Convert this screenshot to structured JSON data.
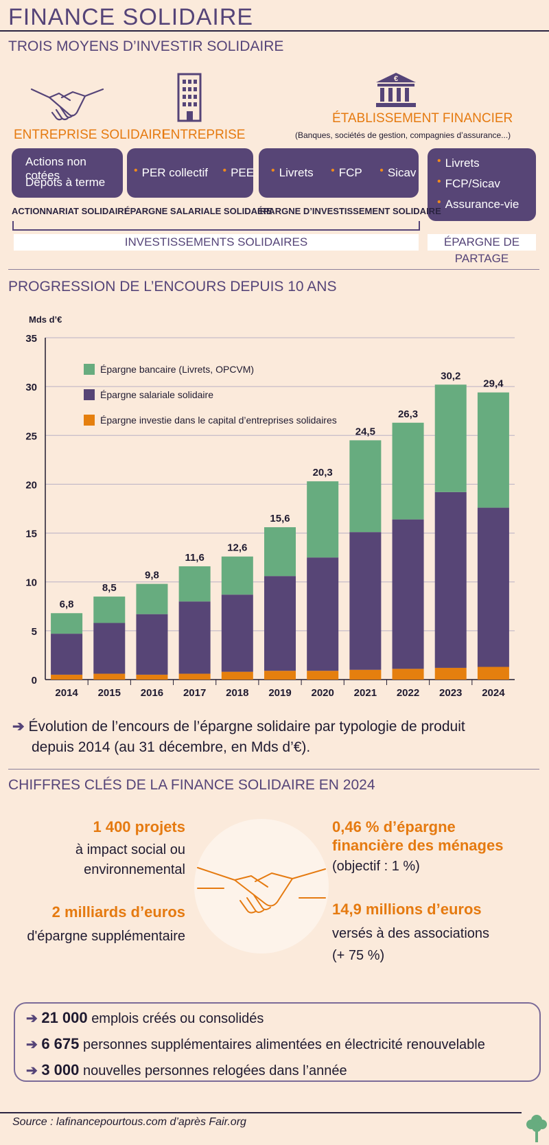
{
  "header": {
    "title": "FINANCE SOLIDAIRE",
    "section1_title": "TROIS MOYENS D’INVESTIR SOLIDAIRE",
    "section2_title": "PROGRESSION DE L’ENCOURS DEPUIS 10 ANS",
    "section3_title": "CHIFFRES CLÉS DE LA FINANCE SOLIDAIRE EN 2024"
  },
  "means": {
    "label_entreprise_solidaire": "ENTREPRISE SOLIDAIRE",
    "label_entreprise": "ENTREPRISE",
    "label_etablissement": "ÉTABLISSEMENT FINANCIER",
    "label_etablissement_sub": "(Banques, sociétés de gestion, compagnies d’assurance...)",
    "box1": [
      "Actions non cotées",
      "Dépôts à terme"
    ],
    "box2": [
      "PER collectif",
      "PEE"
    ],
    "box3": [
      "Livrets",
      "FCP",
      "Sicav"
    ],
    "box4": [
      "Livrets",
      "FCP/Sicav",
      "Assurance-vie"
    ],
    "cat1": "ACTIONNARIAT SOLIDAIRE",
    "cat2": "ÉPARGNE SALARIALE SOLIDAIRE",
    "cat3": "ÉPARGNE D’INVESTISSEMENT SOLIDAIRE",
    "group1": "INVESTISSEMENTS SOLIDAIRES",
    "group2": "ÉPARGNE DE PARTAGE",
    "euro_symbol": "€"
  },
  "chart_data": {
    "type": "bar",
    "stacked": true,
    "ylabel": "Mds d’€",
    "ylim": [
      0,
      35
    ],
    "yticks": [
      0,
      5,
      10,
      15,
      20,
      25,
      30,
      35
    ],
    "categories": [
      "2014",
      "2015",
      "2016",
      "2017",
      "2018",
      "2019",
      "2020",
      "2021",
      "2022",
      "2023",
      "2024"
    ],
    "series": [
      {
        "name": "Épargne investie dans le capital d’entreprises solidaires",
        "color": "#e57f0e",
        "values": [
          0.5,
          0.6,
          0.5,
          0.6,
          0.8,
          0.9,
          0.9,
          1.0,
          1.1,
          1.2,
          1.3
        ]
      },
      {
        "name": "Épargne salariale solidaire",
        "color": "#574576",
        "values": [
          4.2,
          5.2,
          6.2,
          7.4,
          7.9,
          9.7,
          11.6,
          14.1,
          15.3,
          18.0,
          16.3
        ]
      },
      {
        "name": "Épargne bancaire (Livrets, OPCVM)",
        "color": "#67ac7f",
        "values": [
          2.1,
          2.7,
          3.1,
          3.6,
          3.9,
          5.0,
          7.8,
          9.4,
          9.9,
          11.0,
          11.8
        ]
      }
    ],
    "totals": [
      "6,8",
      "8,5",
      "9,8",
      "11,6",
      "12,6",
      "15,6",
      "20,3",
      "24,5",
      "26,3",
      "30,2",
      "29,4"
    ],
    "legend_order": [
      "Épargne bancaire (Livrets, OPCVM)",
      "Épargne salariale solidaire",
      "Épargne investie dans le capital d’entreprises solidaires"
    ]
  },
  "caption": {
    "arrow": "➔",
    "line1": "Évolution de l’encours de l’épargne solidaire par typologie de produit",
    "line2": "depuis 2014 (au 31 décembre, en Mds d’€)."
  },
  "key_figures": {
    "projects_big": "1 400 projets",
    "projects_l1": "à impact social ou",
    "projects_l2": "environnemental",
    "billion_big": "2 milliards d’euros",
    "billion_l1": "d'épargne supplémentaire",
    "share_big1": "0,46 % d’épargne",
    "share_big2": "financière des ménages",
    "share_l1": "(objectif : 1 %)",
    "assoc_big": "14,9 millions d’euros",
    "assoc_l1": "versés à des associations",
    "assoc_l2": "(+ 75 %)"
  },
  "impacts": [
    {
      "value": "21 000",
      "text": "emplois créés ou consolidés"
    },
    {
      "value": "6 675",
      "text": "personnes supplémentaires alimentées en électricité renouvelable"
    },
    {
      "value": "3 000",
      "text": " nouvelles personnes relogées dans l’année"
    }
  ],
  "footer": {
    "source": "Source : lafinancepourtous.com d’après Fair.org"
  },
  "colors": {
    "purple": "#554478",
    "orange": "#e57a10",
    "green": "#67ac7f",
    "background": "#fbeadb"
  }
}
